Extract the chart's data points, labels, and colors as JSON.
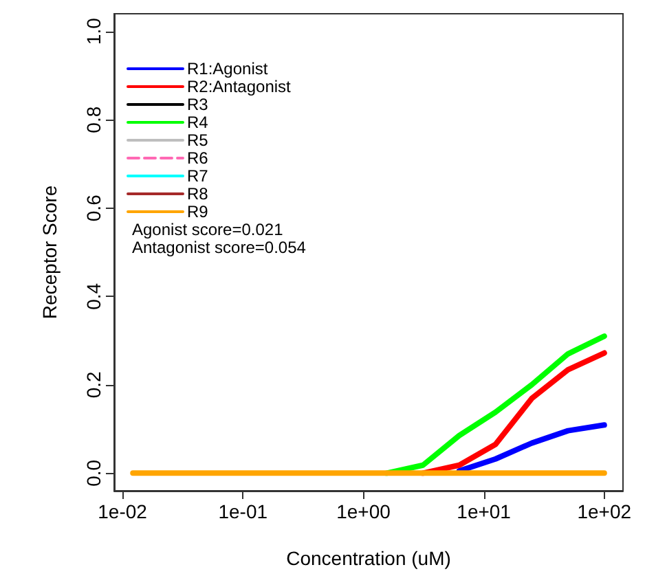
{
  "chart_data": {
    "type": "line",
    "xlabel": "Concentration (uM)",
    "ylabel": "Receptor Score",
    "x": [
      0.01220703125,
      0.0244140625,
      0.048828125,
      0.09765625,
      0.1953125,
      0.390625,
      0.78125,
      1.5625,
      3.125,
      6.25,
      12.5,
      25,
      50,
      100
    ],
    "series": [
      {
        "name": "R1:Agonist",
        "color": "#0000ff",
        "values": [
          null,
          null,
          null,
          null,
          null,
          null,
          null,
          null,
          null,
          0.005,
          0.032,
          0.068,
          0.096,
          0.109
        ]
      },
      {
        "name": "R2:Antagonist",
        "color": "#ff0000",
        "values": [
          null,
          null,
          null,
          null,
          null,
          null,
          null,
          null,
          0,
          0.018,
          0.065,
          0.169,
          0.234,
          0.272
        ]
      },
      {
        "name": "R3",
        "color": "#000000",
        "values": [
          null,
          null,
          null,
          null,
          null,
          null,
          null,
          null,
          null,
          null,
          null,
          null,
          null,
          null
        ]
      },
      {
        "name": "R4",
        "color": "#00ff00",
        "values": [
          null,
          null,
          null,
          null,
          null,
          null,
          null,
          0,
          0.018,
          0.085,
          0.138,
          0.2,
          0.27,
          0.31
        ]
      },
      {
        "name": "R5",
        "color": "#bebebe",
        "values": [
          null,
          null,
          null,
          null,
          null,
          null,
          null,
          null,
          null,
          null,
          null,
          null,
          null,
          null
        ]
      },
      {
        "name": "R6",
        "color": "#ff69b4",
        "line_style": "dashed",
        "values": [
          null,
          null,
          null,
          null,
          null,
          null,
          null,
          null,
          null,
          null,
          null,
          null,
          null,
          null
        ]
      },
      {
        "name": "R7",
        "color": "#00ffff",
        "values": [
          null,
          null,
          null,
          null,
          null,
          null,
          null,
          null,
          null,
          null,
          null,
          null,
          null,
          null
        ]
      },
      {
        "name": "R8",
        "color": "#a52a2a",
        "values": [
          null,
          null,
          null,
          null,
          null,
          null,
          null,
          null,
          null,
          null,
          null,
          null,
          null,
          null
        ]
      },
      {
        "name": "R9",
        "color": "#ffa500",
        "values": [
          0,
          0,
          0,
          0,
          0,
          0,
          0,
          0,
          0,
          0,
          0,
          0,
          0,
          0
        ]
      }
    ],
    "xlim": [
      0.00853,
      143
    ],
    "log": "x",
    "xticks": [
      {
        "value": 0.01,
        "label": "1e-02"
      },
      {
        "value": 0.1,
        "label": "1e-01"
      },
      {
        "value": 1,
        "label": "1e+00"
      },
      {
        "value": 10,
        "label": "1e+01"
      },
      {
        "value": 100,
        "label": "1e+02"
      }
    ],
    "ylim": [
      -0.04,
      1.04
    ],
    "yticks": [
      {
        "value": 0,
        "label": "0.0"
      },
      {
        "value": 0.2,
        "label": "0.2"
      },
      {
        "value": 0.4,
        "label": "0.4"
      },
      {
        "value": 0.6,
        "label": "0.6"
      },
      {
        "value": 0.8,
        "label": "0.8"
      },
      {
        "value": 1,
        "label": "1.0"
      }
    ],
    "legend": "top left",
    "line_style": "solid",
    "marker": "none",
    "annotations": [
      "Agonist score=0.021",
      "Antagonist score=0.054"
    ]
  }
}
